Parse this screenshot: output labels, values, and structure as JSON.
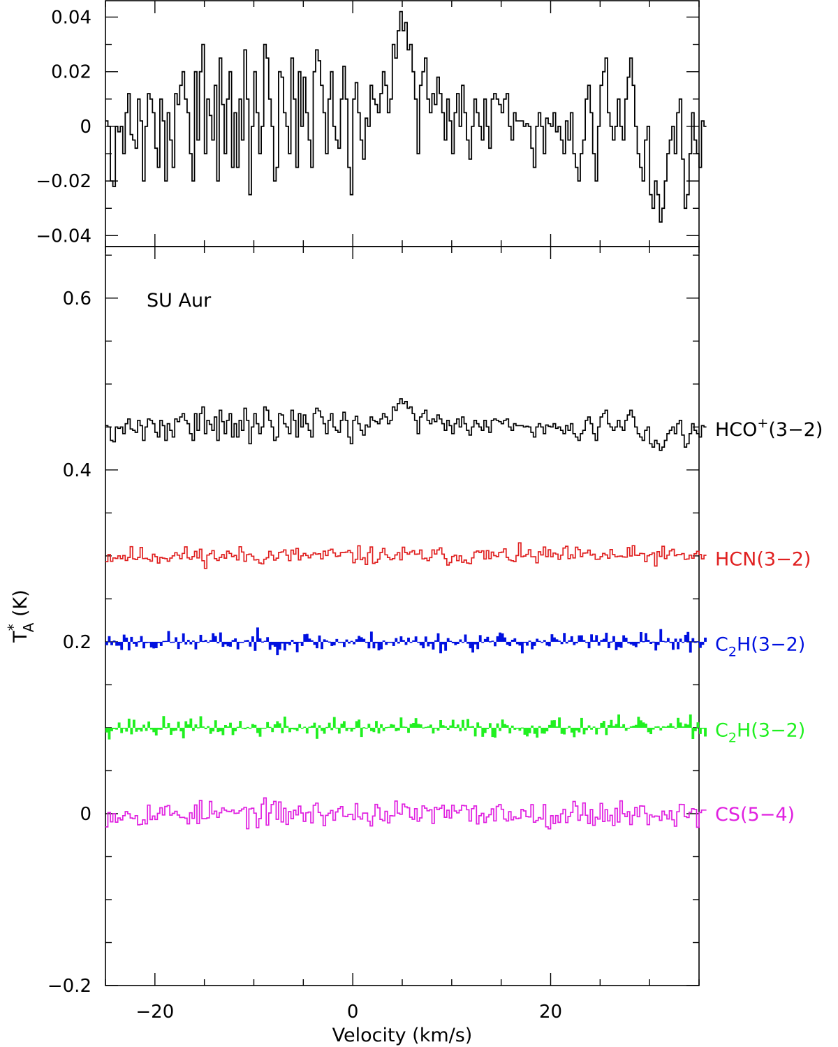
{
  "chart_data": [
    {
      "type": "line",
      "panel": "top",
      "title": "",
      "xlabel": "",
      "ylabel": "",
      "xlim": [
        -25,
        35
      ],
      "ylim": [
        -0.044,
        0.046
      ],
      "x_ticks": [
        "−20",
        "0",
        "20"
      ],
      "y_ticks": [
        {
          "value": 0.04,
          "label": "0.04"
        },
        {
          "value": 0.02,
          "label": "0.02"
        },
        {
          "value": 0,
          "label": "0"
        },
        {
          "value": -0.02,
          "label": "−0.02"
        },
        {
          "value": -0.04,
          "label": "−0.04"
        }
      ],
      "style": "histogram",
      "series": [
        {
          "color": "#000000",
          "x_start": -25,
          "dx": 0.25,
          "values": [
            0.002,
            0.0,
            -0.02,
            -0.022,
            0.0,
            -0.002,
            0.0,
            -0.01,
            0.005,
            0.012,
            -0.003,
            -0.005,
            -0.008,
            0.01,
            0.002,
            -0.02,
            0.0,
            0.012,
            0.01,
            0.005,
            -0.008,
            -0.015,
            0.01,
            0.002,
            -0.02,
            0.005,
            -0.005,
            -0.015,
            0.012,
            0.008,
            0.015,
            0.02,
            0.01,
            0.005,
            -0.01,
            -0.02,
            0.02,
            -0.005,
            0.02,
            0.03,
            -0.01,
            0.01,
            0.004,
            -0.005,
            0.015,
            -0.02,
            0.025,
            0.008,
            -0.01,
            0.01,
            0.02,
            -0.015,
            0.005,
            -0.015,
            0.01,
            -0.005,
            0.028,
            0.01,
            -0.025,
            0.0,
            0.02,
            0.005,
            -0.01,
            0.0,
            0.03,
            0.025,
            0.01,
            0.0,
            -0.02,
            -0.015,
            0.02,
            0.018,
            0.005,
            0.0,
            -0.01,
            0.025,
            0.01,
            -0.015,
            0.02,
            0.0,
            0.018,
            0.005,
            -0.005,
            -0.015,
            0.02,
            0.028,
            0.024,
            0.015,
            0.005,
            -0.01,
            0.01,
            0.02,
            0.0,
            -0.005,
            -0.008,
            0.01,
            0.022,
            0.01,
            -0.015,
            -0.025,
            0.01,
            0.016,
            0.005,
            -0.005,
            -0.012,
            0.003,
            0.0,
            0.015,
            0.01,
            0.008,
            0.005,
            0.012,
            0.02,
            0.015,
            0.005,
            0.01,
            0.03,
            0.025,
            0.035,
            0.042,
            0.035,
            0.038,
            0.028,
            0.03,
            0.02,
            0.01,
            -0.01,
            0.015,
            0.02,
            0.025,
            0.01,
            0.005,
            0.012,
            0.008,
            0.018,
            0.012,
            0.005,
            -0.005,
            0.01,
            0.002,
            -0.01,
            0.005,
            0.012,
            0.0,
            0.015,
            0.005,
            -0.005,
            -0.012,
            0.0,
            0.01,
            0.005,
            0.0,
            -0.005,
            0.01,
            0.0,
            -0.008,
            0.01,
            0.012,
            0.01,
            0.008,
            0.005,
            0.01,
            0.012,
            0.0,
            -0.005,
            0.005,
            0.002,
            0.002,
            0.002,
            0.0,
            0.001,
            0.0,
            -0.008,
            -0.015,
            0.0,
            0.005,
            0.0,
            -0.01,
            0.003,
            0.001,
            0.0,
            0.005,
            -0.002,
            0.0,
            -0.005,
            -0.01,
            0.002,
            -0.005,
            0.005,
            -0.01,
            -0.015,
            -0.02,
            -0.01,
            -0.005,
            0.01,
            0.015,
            0.005,
            -0.01,
            -0.02,
            0.0,
            0.015,
            0.02,
            0.025,
            0.005,
            0.0,
            -0.005,
            0.0,
            0.01,
            0.0,
            -0.005,
            0.01,
            0.018,
            0.025,
            0.015,
            0.0,
            -0.01,
            -0.015,
            -0.02,
            -0.005,
            0.0,
            -0.025,
            -0.03,
            -0.02,
            -0.025,
            -0.035,
            -0.03,
            -0.02,
            -0.01,
            -0.005,
            0.0,
            -0.01,
            0.005,
            0.01,
            -0.012,
            -0.03,
            -0.025,
            -0.01,
            0.005,
            -0.005,
            -0.01,
            -0.015,
            0.002,
            0.0
          ]
        }
      ]
    },
    {
      "type": "line",
      "panel": "bottom",
      "title": "",
      "xlabel": "Velocity (km/s)",
      "ylabel": "T",
      "ylabel_sub": "A",
      "ylabel_sup": "*",
      "ylabel_unit": " (K)",
      "annotation": "SU Aur",
      "xlim": [
        -25,
        35
      ],
      "ylim": [
        -0.2,
        0.66
      ],
      "x_ticks": [
        {
          "value": -20,
          "label": "−20"
        },
        {
          "value": 0,
          "label": "0"
        },
        {
          "value": 20,
          "label": "20"
        }
      ],
      "y_ticks": [
        {
          "value": 0.6,
          "label": "0.6"
        },
        {
          "value": 0.4,
          "label": "0.4"
        },
        {
          "value": 0.2,
          "label": "0.2"
        },
        {
          "value": 0,
          "label": "0"
        },
        {
          "value": -0.2,
          "label": "−0.2"
        }
      ],
      "series": [
        {
          "name": "HCO",
          "name_sup": "+",
          "name_suffix": "(3−2)",
          "color": "#000000",
          "offset": 0.45,
          "style": "histogram",
          "x_start": -25,
          "dx": 0.25,
          "reuse_top_panel_values": true
        },
        {
          "name": "HCN(3−2)",
          "color": "#e02020",
          "offset": 0.3,
          "style": "histogram",
          "x_start": -25,
          "dx": 0.25,
          "amplitude": 0.016,
          "seed": 11
        },
        {
          "name": "C",
          "name_sub": "2",
          "name_suffix": "H(3−2)",
          "color": "#0010e0",
          "offset": 0.2,
          "style": "filled-histogram",
          "x_start": -25,
          "dx": 0.25,
          "amplitude": 0.018,
          "seed": 23
        },
        {
          "name": "C",
          "name_sub": "2",
          "name_suffix": "H(3−2)",
          "color": "#20f020",
          "offset": 0.1,
          "style": "filled-histogram",
          "x_start": -25,
          "dx": 0.25,
          "amplitude": 0.018,
          "seed": 37
        },
        {
          "name": "CS(5−4)",
          "color": "#e020e0",
          "offset": 0.0,
          "style": "histogram",
          "x_start": -25,
          "dx": 0.25,
          "amplitude": 0.022,
          "seed": 53
        }
      ]
    }
  ]
}
